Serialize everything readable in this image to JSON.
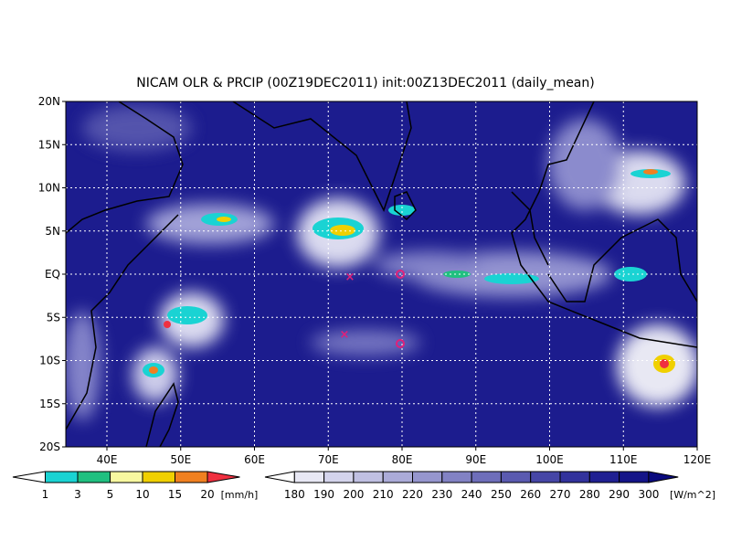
{
  "title": "NICAM OLR & PRCIP (00Z19DEC2011) init:00Z13DEC2011 (daily_mean)",
  "map": {
    "lat_labels": [
      "20N",
      "15N",
      "10N",
      "5N",
      "EQ",
      "5S",
      "10S",
      "15S",
      "20S"
    ],
    "lon_labels": [
      "40E",
      "50E",
      "60E",
      "70E",
      "80E",
      "90E",
      "100E",
      "110E",
      "120E"
    ]
  },
  "precip_legend": {
    "labels": [
      "1",
      "3",
      "5",
      "10",
      "15",
      "20"
    ],
    "unit": "[mm/h]",
    "colors": [
      "#ffffff",
      "#1ad3d3",
      "#20c080",
      "#f8f8a0",
      "#f0d000",
      "#f08020",
      "#f03040"
    ]
  },
  "olr_legend": {
    "labels": [
      "180",
      "190",
      "200",
      "210",
      "220",
      "230",
      "240",
      "250",
      "260",
      "270",
      "280",
      "290",
      "300"
    ],
    "unit": "[W/m^2]",
    "colors": [
      "#ffffff",
      "#e8e8f4",
      "#d4d4ec",
      "#c0c0e2",
      "#ababd8",
      "#9696ce",
      "#8282c4",
      "#6e6eba",
      "#5a5ab0",
      "#4646a6",
      "#32329c",
      "#202092",
      "#141488",
      "#0a0a7e"
    ]
  }
}
